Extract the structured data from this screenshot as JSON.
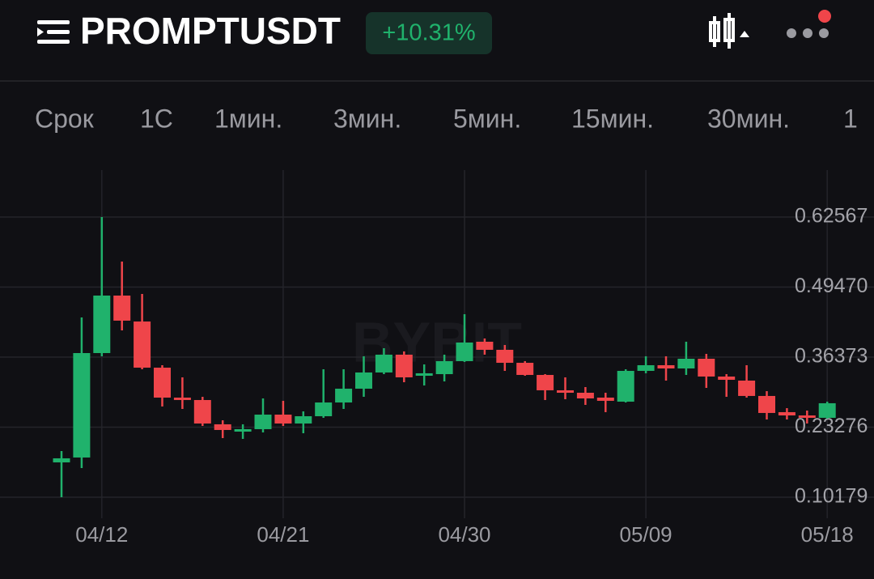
{
  "header": {
    "symbol": "PROMPTUSDT",
    "change": "+10.31%"
  },
  "tabs": [
    "Срок",
    "1С",
    "1мин.",
    "3мин.",
    "5мин.",
    "15мин.",
    "30мин.",
    "1"
  ],
  "chart_data": {
    "type": "candlestick",
    "watermark": "BYBIT",
    "categories": [
      null,
      null,
      "04/12",
      null,
      null,
      null,
      null,
      null,
      null,
      null,
      null,
      "04/21",
      null,
      null,
      null,
      null,
      null,
      null,
      null,
      null,
      "04/30",
      null,
      null,
      null,
      null,
      null,
      null,
      null,
      null,
      "05/09",
      null,
      null,
      null,
      null,
      null,
      null,
      null,
      null,
      "05/18"
    ],
    "open": [
      0.1669,
      0.176,
      0.3713,
      0.4788,
      0.4303,
      0.344,
      0.288,
      0.2835,
      0.2381,
      0.2244,
      0.229,
      0.2562,
      0.2396,
      0.2532,
      0.2789,
      0.3047,
      0.335,
      0.3683,
      0.3289,
      0.3319,
      0.3562,
      0.3925,
      0.3774,
      0.3531,
      0.3304,
      0.3017,
      0.2971,
      0.288,
      0.2804,
      0.338,
      0.3486,
      0.3425,
      0.3607,
      0.3274,
      0.3198,
      0.2911,
      0.2608,
      0.2547,
      0.2502
    ],
    "high": [
      0.1881,
      0.4379,
      0.6257,
      0.5424,
      0.4818,
      0.3486,
      0.3259,
      0.2895,
      0.2456,
      0.2381,
      0.2865,
      0.282,
      0.2623,
      0.341,
      0.341,
      0.3653,
      0.3804,
      0.3744,
      0.3501,
      0.3683,
      0.444,
      0.3986,
      0.3864,
      0.3562,
      0.3319,
      0.3259,
      0.3077,
      0.2971,
      0.341,
      0.3653,
      0.3653,
      0.3925,
      0.3698,
      0.3319,
      0.3486,
      0.3001,
      0.2683,
      0.2638,
      0.2804
    ],
    "low": [
      0.1018,
      0.1563,
      0.3653,
      0.4137,
      0.341,
      0.2714,
      0.2668,
      0.235,
      0.2123,
      0.2108,
      0.2229,
      0.235,
      0.2214,
      0.2502,
      0.2668,
      0.2895,
      0.3319,
      0.3168,
      0.3107,
      0.3183,
      0.3547,
      0.3683,
      0.338,
      0.3289,
      0.2835,
      0.285,
      0.2744,
      0.2608,
      0.2789,
      0.3335,
      0.3198,
      0.3304,
      0.3062,
      0.2895,
      0.288,
      0.2471,
      0.2471,
      0.2396,
      0.2487
    ],
    "close": [
      0.1745,
      0.3713,
      0.4788,
      0.4319,
      0.344,
      0.288,
      0.2835,
      0.2396,
      0.2275,
      0.229,
      0.2562,
      0.2396,
      0.2532,
      0.2789,
      0.3047,
      0.335,
      0.3683,
      0.3259,
      0.3335,
      0.3562,
      0.391,
      0.3774,
      0.3531,
      0.3304,
      0.3017,
      0.2971,
      0.2865,
      0.282,
      0.338,
      0.3486,
      0.3425,
      0.3607,
      0.3274,
      0.3213,
      0.2911,
      0.2593,
      0.2547,
      0.2502,
      0.2775
    ],
    "up_color": "#20b26c",
    "down_color": "#ef454a",
    "ylim": [
      0.0624,
      0.7135
    ],
    "yticks": [
      0.62567,
      {
        "value": 0.4947,
        "label": "0.49470"
      },
      0.36373,
      0.23276,
      0.10179
    ],
    "grid": true
  }
}
